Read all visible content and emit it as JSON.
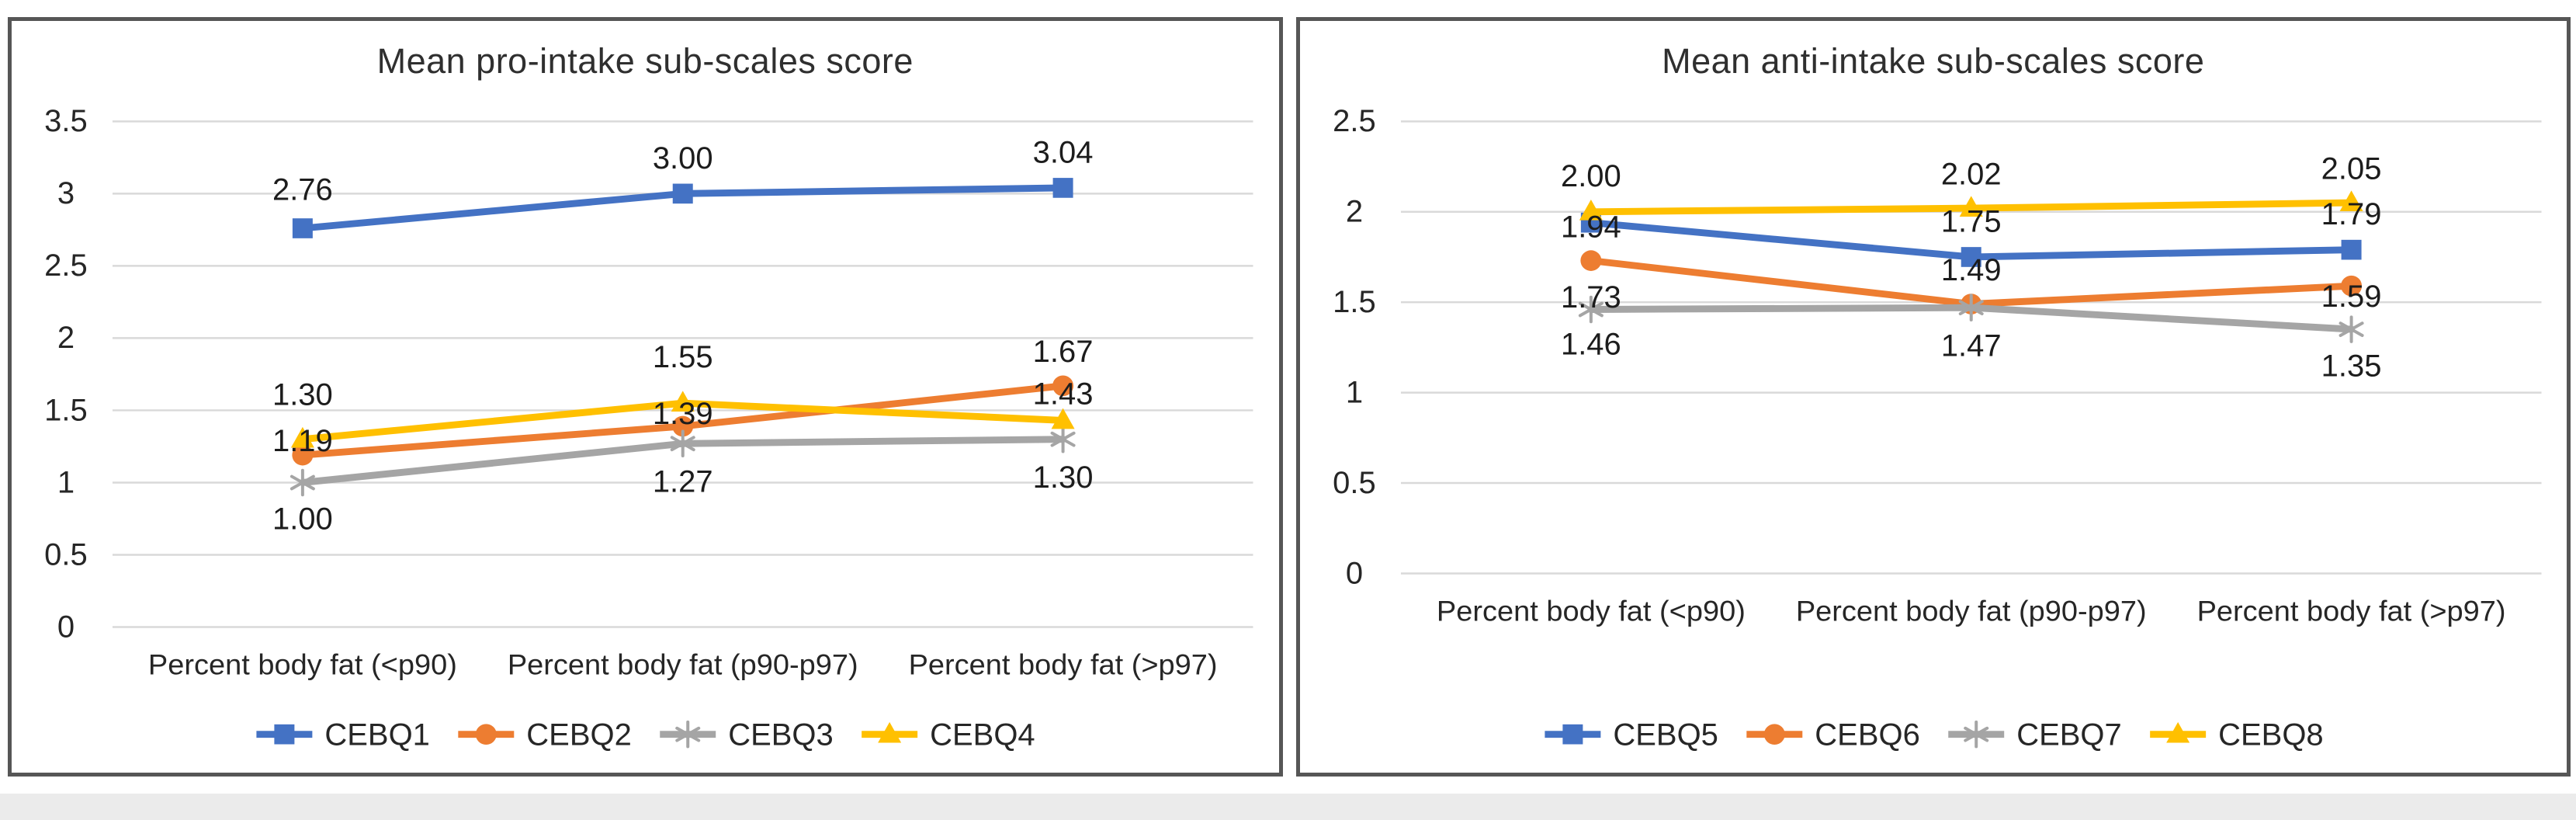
{
  "page": {
    "background": "#ffffff",
    "panel_border_color": "#565656",
    "bottom_strip_color": "#ebebeb",
    "data_label_color": "#1c1c1c",
    "axis_text_color": "#262626"
  },
  "chart_data": [
    {
      "type": "line",
      "title": "Mean pro-intake sub-scales score",
      "xlabel": "",
      "ylabel": "",
      "categories": [
        "Percent body fat (<p90)",
        "Percent body fat (p90-p97)",
        "Percent body fat (>p97)"
      ],
      "ylim": [
        0,
        3.5
      ],
      "ytick_step": 0.5,
      "ytick_labels": [
        "0",
        "0.5",
        "1",
        "1.5",
        "2",
        "2.5",
        "3",
        "3.5"
      ],
      "gridlines": "horizontal",
      "gridline_color": "#D9D9D9",
      "text_color": "#262626",
      "legend_position": "bottom",
      "series": [
        {
          "name": "CEBQ1",
          "color": "#4472C4",
          "marker": "square",
          "values": [
            2.76,
            3.0,
            3.04
          ],
          "point_labels": [
            "2.76",
            "3.00",
            "3.04"
          ],
          "label_dy": [
            -50,
            -46,
            -46
          ]
        },
        {
          "name": "CEBQ2",
          "color": "#ED7D31",
          "marker": "circle",
          "values": [
            1.19,
            1.39,
            1.67
          ],
          "point_labels": [
            "1.19",
            "1.39",
            "1.67"
          ],
          "label_dy": [
            -18,
            -16,
            -44
          ]
        },
        {
          "name": "CEBQ3",
          "color": "#A5A5A5",
          "marker": "asterisk",
          "values": [
            1.0,
            1.27,
            1.3
          ],
          "point_labels": [
            "1.00",
            "1.27",
            "1.30"
          ],
          "label_dy": [
            48,
            50,
            50
          ]
        },
        {
          "name": "CEBQ4",
          "color": "#FFC000",
          "marker": "triangle",
          "values": [
            1.3,
            1.55,
            1.43
          ],
          "point_labels": [
            "1.30",
            "1.55",
            "1.43"
          ],
          "label_dy": [
            -58,
            -60,
            -34
          ]
        }
      ]
    },
    {
      "type": "line",
      "title": "Mean anti-intake sub-scales score",
      "xlabel": "",
      "ylabel": "",
      "categories": [
        "Percent body fat (<p90)",
        "Percent body fat (p90-p97)",
        "Percent body fat (>p97)"
      ],
      "ylim": [
        0,
        2.5
      ],
      "ytick_step": 0.5,
      "ytick_labels": [
        "0",
        "0.5",
        "1",
        "1.5",
        "2",
        "2.5"
      ],
      "gridlines": "horizontal",
      "gridline_color": "#D9D9D9",
      "text_color": "#262626",
      "legend_position": "bottom",
      "series": [
        {
          "name": "CEBQ5",
          "color": "#4472C4",
          "marker": "square",
          "values": [
            1.94,
            1.75,
            1.79
          ],
          "point_labels": [
            "1.94",
            "1.75",
            "1.79"
          ],
          "label_dy": [
            6,
            -46,
            -46
          ]
        },
        {
          "name": "CEBQ6",
          "color": "#ED7D31",
          "marker": "circle",
          "values": [
            1.73,
            1.49,
            1.59
          ],
          "point_labels": [
            "1.73",
            "1.49",
            "1.59"
          ],
          "label_dy": [
            48,
            -44,
            14
          ]
        },
        {
          "name": "CEBQ7",
          "color": "#A5A5A5",
          "marker": "asterisk",
          "values": [
            1.46,
            1.47,
            1.35
          ],
          "point_labels": [
            "1.46",
            "1.47",
            "1.35"
          ],
          "label_dy": [
            46,
            50,
            48
          ]
        },
        {
          "name": "CEBQ8",
          "color": "#FFC000",
          "marker": "triangle",
          "values": [
            2.0,
            2.02,
            2.05
          ],
          "point_labels": [
            "2.00",
            "2.02",
            "2.05"
          ],
          "label_dy": [
            -46,
            -44,
            -44
          ]
        }
      ]
    }
  ]
}
